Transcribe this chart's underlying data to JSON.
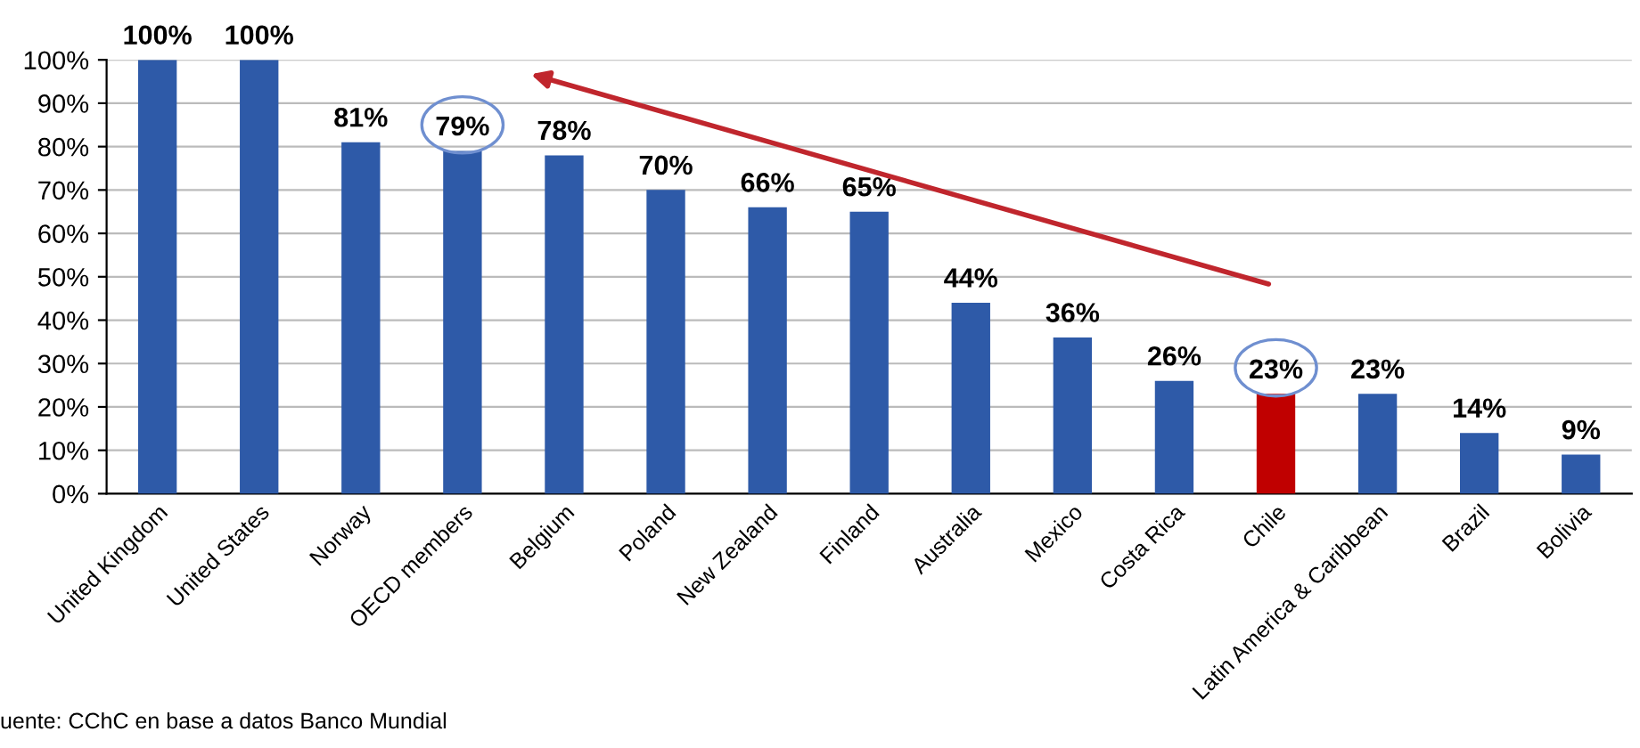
{
  "chart_data": {
    "type": "bar",
    "categories": [
      "United Kingdom",
      "United States",
      "Norway",
      "OECD members",
      "Belgium",
      "Poland",
      "New Zealand",
      "Finland",
      "Australia",
      "Mexico",
      "Costa Rica",
      "Chile",
      "Latin America & Caribbean",
      "Brazil",
      "Bolivia"
    ],
    "values": [
      100,
      100,
      81,
      79,
      78,
      70,
      66,
      65,
      44,
      36,
      26,
      23,
      23,
      14,
      9
    ],
    "colors": [
      "#2e5aa8",
      "#2e5aa8",
      "#2e5aa8",
      "#2e5aa8",
      "#2e5aa8",
      "#2e5aa8",
      "#2e5aa8",
      "#2e5aa8",
      "#2e5aa8",
      "#2e5aa8",
      "#2e5aa8",
      "#c00000",
      "#2e5aa8",
      "#2e5aa8",
      "#2e5aa8"
    ],
    "value_labels": [
      "100%",
      "100%",
      "81%",
      "79%",
      "78%",
      "70%",
      "66%",
      "65%",
      "44%",
      "36%",
      "26%",
      "23%",
      "23%",
      "14%",
      "9%"
    ],
    "ylim": [
      0,
      100
    ],
    "yticks": [
      {
        "value": 0,
        "label": "0%"
      },
      {
        "value": 10,
        "label": "10%"
      },
      {
        "value": 20,
        "label": "20%"
      },
      {
        "value": 30,
        "label": "30%"
      },
      {
        "value": 40,
        "label": "40%"
      },
      {
        "value": 50,
        "label": "50%"
      },
      {
        "value": 60,
        "label": "60%"
      },
      {
        "value": 70,
        "label": "70%"
      },
      {
        "value": 80,
        "label": "80%"
      },
      {
        "value": 90,
        "label": "90%"
      },
      {
        "value": 100,
        "label": "100%"
      }
    ],
    "grid": "y",
    "annotations": [
      "uente: CChC en base a datos Banco Mundial"
    ]
  }
}
